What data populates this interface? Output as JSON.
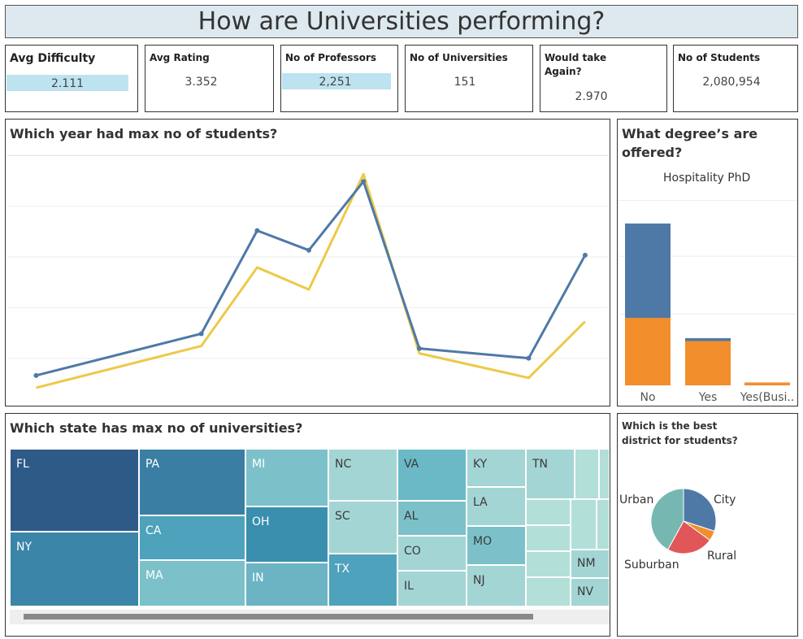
{
  "title": "How are Universities performing?",
  "kpis": [
    {
      "label": "Avg Difficulty",
      "value": "2.111"
    },
    {
      "label": "Avg Rating",
      "value": "3.352"
    },
    {
      "label": "No of Professors",
      "value": "2,251"
    },
    {
      "label": "No of Universities",
      "value": "151"
    },
    {
      "label_line1": "Would take",
      "label_line2": "Again?",
      "value": "2.970"
    },
    {
      "label": "No of Students",
      "value": "2,080,954"
    }
  ],
  "line_panel": {
    "title": "Which year had max no of students?"
  },
  "bar_panel": {
    "title_line1": "What degree’s are",
    "title_line2": "offered?",
    "subtitle": "Hospitality PhD"
  },
  "treemap_panel": {
    "title": "Which state has max no of universities?",
    "states": [
      "FL",
      "NY",
      "PA",
      "CA",
      "MA",
      "MI",
      "OH",
      "IN",
      "NC",
      "SC",
      "TX",
      "VA",
      "AL",
      "CO",
      "IL",
      "KY",
      "LA",
      "MO",
      "NJ",
      "TN",
      "NM",
      "NV"
    ]
  },
  "pie_panel": {
    "title_line1": "Which is the best",
    "title_line2": "district for students?"
  },
  "chart_data": [
    {
      "type": "line",
      "title": "Which year had max no of students?",
      "x": [
        1,
        2,
        3,
        4,
        5,
        6,
        7,
        8
      ],
      "xlabels_shown": false,
      "ylabels_shown": false,
      "ylim": [
        0,
        100
      ],
      "series": [
        {
          "color": "#4e79a7",
          "values": [
            9,
            26,
            68,
            60,
            88,
            20,
            16,
            58
          ],
          "markers": true
        },
        {
          "color": "#edc948",
          "values": [
            4,
            21,
            53,
            44,
            91,
            18,
            8,
            31
          ],
          "markers": false
        }
      ],
      "grid": true
    },
    {
      "type": "bar",
      "title": "What degree’s are offered?",
      "subtitle": "Hospitality PhD",
      "categories": [
        "No",
        "Yes",
        "Yes(Busi.."
      ],
      "stacked": true,
      "ylim": [
        0,
        100
      ],
      "series": [
        {
          "color": "#f28e2b",
          "values": [
            35,
            23,
            1.5
          ]
        },
        {
          "color": "#4e79a7",
          "values": [
            49,
            1.5,
            0
          ]
        }
      ],
      "grid": true
    },
    {
      "type": "heatmap",
      "subtype": "treemap",
      "title": "Which state has max no of universities?",
      "categories": [
        "FL",
        "NY",
        "PA",
        "CA",
        "MA",
        "MI",
        "OH",
        "IN",
        "NC",
        "SC",
        "TX",
        "VA",
        "AL",
        "CO",
        "IL",
        "KY",
        "LA",
        "MO",
        "NJ",
        "TN",
        "NM",
        "NV"
      ]
    },
    {
      "type": "pie",
      "title": "Which is the best district for students?",
      "categories": [
        "City",
        "Rural",
        "Suburban",
        "Urban"
      ],
      "values": [
        30,
        5,
        23,
        42
      ],
      "colors": [
        "#4e79a7",
        "#f28e2b",
        "#e15759",
        "#76b7b2"
      ]
    }
  ]
}
